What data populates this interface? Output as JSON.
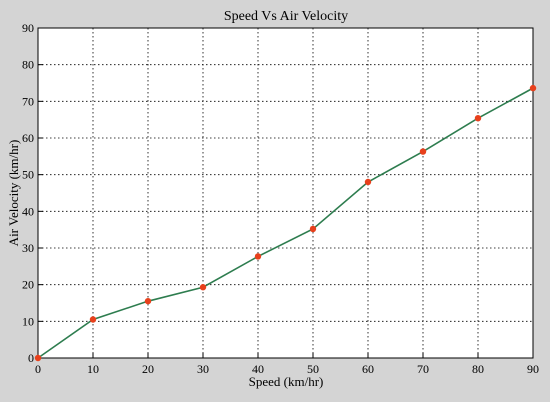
{
  "chart_data": {
    "type": "line",
    "title": "Speed Vs Air Velocity",
    "xlabel": "Speed (km/hr)",
    "ylabel": "Air Velocity (km/hr)",
    "xlim": [
      0,
      90
    ],
    "ylim": [
      0,
      90
    ],
    "xticks": [
      0,
      10,
      20,
      30,
      40,
      50,
      60,
      70,
      80,
      90
    ],
    "yticks": [
      0,
      10,
      20,
      30,
      40,
      50,
      60,
      70,
      80,
      90
    ],
    "grid": true,
    "series": [
      {
        "x": [
          0,
          10,
          20,
          30,
          40,
          50,
          60,
          70,
          80,
          90
        ],
        "y": [
          0,
          10.5,
          15.5,
          19.3,
          27.7,
          35.2,
          48,
          56.3,
          65.4,
          73.6
        ],
        "line_color": "#2e7d4f",
        "marker_color": "#e8401c"
      }
    ]
  }
}
